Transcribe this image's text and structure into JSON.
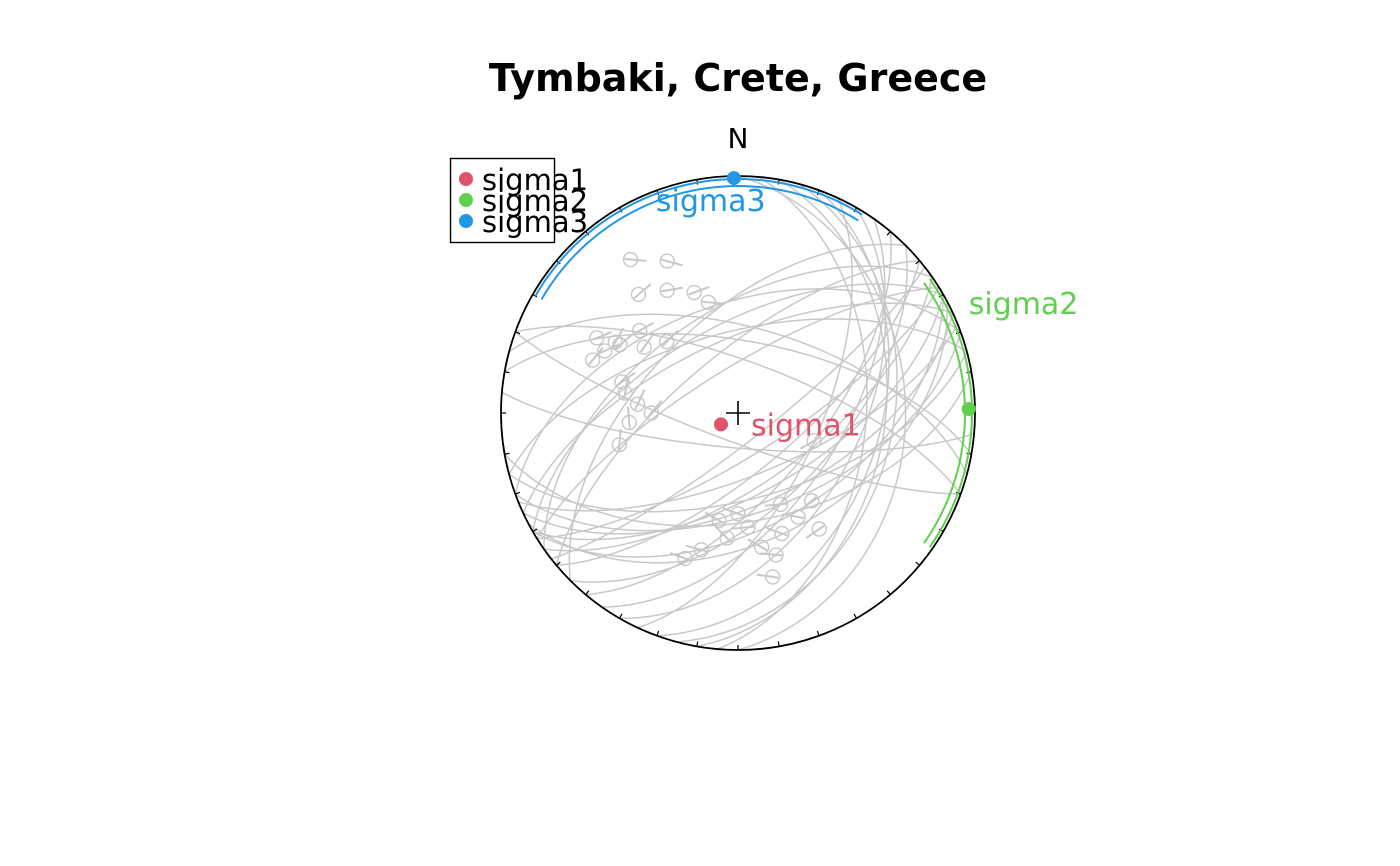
{
  "title": "Tymbaki, Crete, Greece",
  "north_label": "N",
  "colors": {
    "sigma1": "#DF536B",
    "sigma2": "#61D04F",
    "sigma3": "#2297E6",
    "faults": "#C8C8C8",
    "net": "#000000"
  },
  "chart_data": {
    "type": "scatter",
    "projection": "equal-area lower hemisphere stereonet",
    "title": "Tymbaki, Crete, Greece",
    "legend": {
      "position": "top-left",
      "entries": [
        {
          "name": "sigma1",
          "color": "#DF536B",
          "marker": "filled circle"
        },
        {
          "name": "sigma2",
          "color": "#61D04F",
          "marker": "filled circle"
        },
        {
          "name": "sigma3",
          "color": "#2297E6",
          "marker": "filled circle"
        }
      ]
    },
    "principal_stresses": [
      {
        "name": "sigma1",
        "label": "sigma1",
        "trend": 236,
        "plunge": 83,
        "color": "#DF536B"
      },
      {
        "name": "sigma2",
        "label": "sigma2",
        "trend": 89,
        "plunge": 3,
        "color": "#61D04F",
        "confidence_arc": {
          "trend_from": 55,
          "trend_to": 125
        }
      },
      {
        "name": "sigma3",
        "label": "sigma3",
        "trend": 359,
        "plunge": 1,
        "color": "#2297E6",
        "confidence_arc": {
          "trend_from": 300,
          "trend_to": 32
        }
      }
    ],
    "fault_planes": [
      {
        "dip_dir": 150,
        "dip": 62
      },
      {
        "dip_dir": 155,
        "dip": 58
      },
      {
        "dip_dir": 145,
        "dip": 65
      },
      {
        "dip_dir": 160,
        "dip": 55
      },
      {
        "dip_dir": 140,
        "dip": 70
      },
      {
        "dip_dir": 150,
        "dip": 50
      },
      {
        "dip_dir": 165,
        "dip": 60
      },
      {
        "dip_dir": 135,
        "dip": 57
      },
      {
        "dip_dir": 148,
        "dip": 75
      },
      {
        "dip_dir": 158,
        "dip": 68
      },
      {
        "dip_dir": 152,
        "dip": 45
      },
      {
        "dip_dir": 142,
        "dip": 80
      },
      {
        "dip_dir": 170,
        "dip": 52
      },
      {
        "dip_dir": 130,
        "dip": 63
      },
      {
        "dip_dir": 330,
        "dip": 60
      },
      {
        "dip_dir": 325,
        "dip": 55
      },
      {
        "dip_dir": 335,
        "dip": 65
      },
      {
        "dip_dir": 320,
        "dip": 70
      },
      {
        "dip_dir": 340,
        "dip": 52
      },
      {
        "dip_dir": 328,
        "dip": 75
      },
      {
        "dip_dir": 315,
        "dip": 58
      },
      {
        "dip_dir": 345,
        "dip": 62
      },
      {
        "dip_dir": 120,
        "dip": 48
      },
      {
        "dip_dir": 110,
        "dip": 40
      },
      {
        "dip_dir": 125,
        "dip": 55
      },
      {
        "dip_dir": 105,
        "dip": 35
      },
      {
        "dip_dir": 115,
        "dip": 62
      },
      {
        "dip_dir": 10,
        "dip": 65
      },
      {
        "dip_dir": 20,
        "dip": 72
      },
      {
        "dip_dir": 15,
        "dip": 60
      },
      {
        "dip_dir": 200,
        "dip": 80
      },
      {
        "dip_dir": 185,
        "dip": 78
      },
      {
        "dip_dir": 95,
        "dip": 45
      },
      {
        "dip_dir": 100,
        "dip": 38
      },
      {
        "dip_dir": 90,
        "dip": 30
      }
    ],
    "slip_markers": [
      {
        "trend": 300,
        "plunge": 40
      },
      {
        "trend": 310,
        "plunge": 45
      },
      {
        "trend": 295,
        "plunge": 38
      },
      {
        "trend": 305,
        "plunge": 50
      },
      {
        "trend": 290,
        "plunge": 35
      },
      {
        "trend": 285,
        "plunge": 48
      },
      {
        "trend": 315,
        "plunge": 55
      },
      {
        "trend": 300,
        "plunge": 42
      },
      {
        "trend": 298,
        "plunge": 33
      },
      {
        "trend": 320,
        "plunge": 35
      },
      {
        "trend": 330,
        "plunge": 40
      },
      {
        "trend": 335,
        "plunge": 30
      },
      {
        "trend": 340,
        "plunge": 45
      },
      {
        "trend": 345,
        "plunge": 50
      },
      {
        "trend": 325,
        "plunge": 22
      },
      {
        "trend": 280,
        "plunge": 50
      },
      {
        "trend": 275,
        "plunge": 55
      },
      {
        "trend": 270,
        "plunge": 60
      },
      {
        "trend": 265,
        "plunge": 52
      },
      {
        "trend": 255,
        "plunge": 47
      },
      {
        "trend": 150,
        "plunge": 48
      },
      {
        "trend": 145,
        "plunge": 40
      },
      {
        "trend": 155,
        "plunge": 55
      },
      {
        "trend": 160,
        "plunge": 45
      },
      {
        "trend": 140,
        "plunge": 50
      },
      {
        "trend": 165,
        "plunge": 38
      },
      {
        "trend": 170,
        "plunge": 42
      },
      {
        "trend": 175,
        "plunge": 50
      },
      {
        "trend": 180,
        "plunge": 55
      },
      {
        "trend": 185,
        "plunge": 46
      },
      {
        "trend": 195,
        "plunge": 40
      },
      {
        "trend": 190,
        "plunge": 52
      },
      {
        "trend": 110,
        "plunge": 62
      },
      {
        "trend": 200,
        "plunge": 35
      },
      {
        "trend": 168,
        "plunge": 30
      }
    ]
  }
}
